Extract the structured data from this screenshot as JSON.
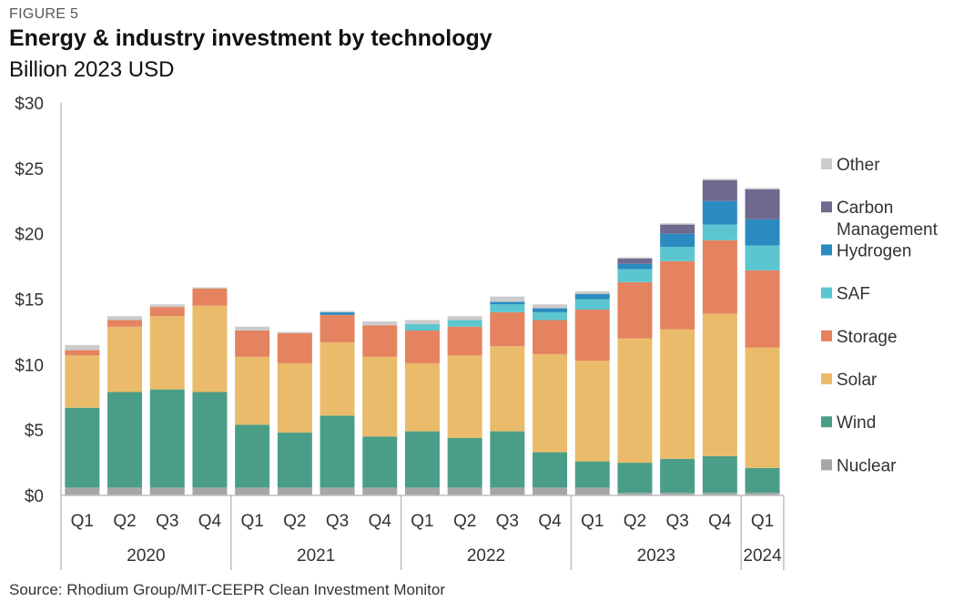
{
  "figure_label": "FIGURE 5",
  "title": "Energy & industry investment by technology",
  "subtitle": "Billion 2023 USD",
  "source": "Source: Rhodium Group/MIT-CEEPR Clean Investment Monitor",
  "chart_data": {
    "type": "bar",
    "stacked": true,
    "title": "Energy & industry investment by technology",
    "subtitle": "Billion 2023 USD",
    "ylim": [
      0,
      30
    ],
    "yticks": [
      0,
      5,
      10,
      15,
      20,
      25,
      30
    ],
    "ytick_labels": [
      "$0",
      "$5",
      "$10",
      "$15",
      "$20",
      "$25",
      "$30"
    ],
    "grid": false,
    "legend_position": "right",
    "categories": [
      "Q1",
      "Q2",
      "Q3",
      "Q4",
      "Q1",
      "Q2",
      "Q3",
      "Q4",
      "Q1",
      "Q2",
      "Q3",
      "Q4",
      "Q1",
      "Q2",
      "Q3",
      "Q4",
      "Q1"
    ],
    "groups": [
      {
        "label": "2020",
        "count": 4
      },
      {
        "label": "2021",
        "count": 4
      },
      {
        "label": "2022",
        "count": 4
      },
      {
        "label": "2023",
        "count": 4
      },
      {
        "label": "2024",
        "count": 1
      }
    ],
    "series": [
      {
        "name": "Nuclear",
        "color": "#a6a6a6",
        "values": [
          0.6,
          0.6,
          0.6,
          0.6,
          0.6,
          0.6,
          0.6,
          0.6,
          0.6,
          0.6,
          0.6,
          0.6,
          0.6,
          0.2,
          0.2,
          0.2,
          0.2
        ]
      },
      {
        "name": "Wind",
        "color": "#4a9e88",
        "values": [
          6.1,
          7.3,
          7.5,
          7.3,
          4.8,
          4.2,
          5.5,
          3.9,
          4.3,
          3.8,
          4.3,
          2.7,
          2.0,
          2.3,
          2.6,
          2.8,
          1.9
        ]
      },
      {
        "name": "Solar",
        "color": "#e9bb6a",
        "values": [
          4.0,
          5.0,
          5.6,
          6.6,
          5.2,
          5.3,
          5.6,
          6.1,
          5.2,
          6.3,
          6.5,
          7.5,
          7.7,
          9.5,
          9.9,
          10.9,
          9.2
        ]
      },
      {
        "name": "Storage",
        "color": "#e5825f",
        "values": [
          0.4,
          0.5,
          0.7,
          1.3,
          2.0,
          2.3,
          2.1,
          2.4,
          2.5,
          2.2,
          2.6,
          2.6,
          3.9,
          4.3,
          5.2,
          5.6,
          5.9
        ]
      },
      {
        "name": "SAF",
        "color": "#5bc6d0",
        "values": [
          0.0,
          0.0,
          0.0,
          0.0,
          0.0,
          0.0,
          0.0,
          0.0,
          0.5,
          0.5,
          0.6,
          0.6,
          0.8,
          1.0,
          1.1,
          1.2,
          1.9
        ]
      },
      {
        "name": "Hydrogen",
        "color": "#2a8bc0",
        "values": [
          0.0,
          0.0,
          0.0,
          0.0,
          0.0,
          0.0,
          0.2,
          0.0,
          0.0,
          0.0,
          0.2,
          0.3,
          0.4,
          0.4,
          1.0,
          1.8,
          2.0
        ]
      },
      {
        "name": "Carbon Management",
        "color": "#6e6a8e",
        "values": [
          0.0,
          0.0,
          0.0,
          0.0,
          0.0,
          0.0,
          0.0,
          0.0,
          0.0,
          0.0,
          0.0,
          0.0,
          0.0,
          0.4,
          0.7,
          1.6,
          2.3
        ]
      },
      {
        "name": "Other",
        "color": "#cbcbcb",
        "values": [
          0.4,
          0.3,
          0.2,
          0.1,
          0.3,
          0.1,
          0.1,
          0.3,
          0.3,
          0.3,
          0.4,
          0.3,
          0.2,
          0.1,
          0.1,
          0.1,
          0.1
        ]
      }
    ],
    "legend_order": [
      "Other",
      "Carbon Management",
      "Hydrogen",
      "SAF",
      "Storage",
      "Solar",
      "Wind",
      "Nuclear"
    ]
  }
}
